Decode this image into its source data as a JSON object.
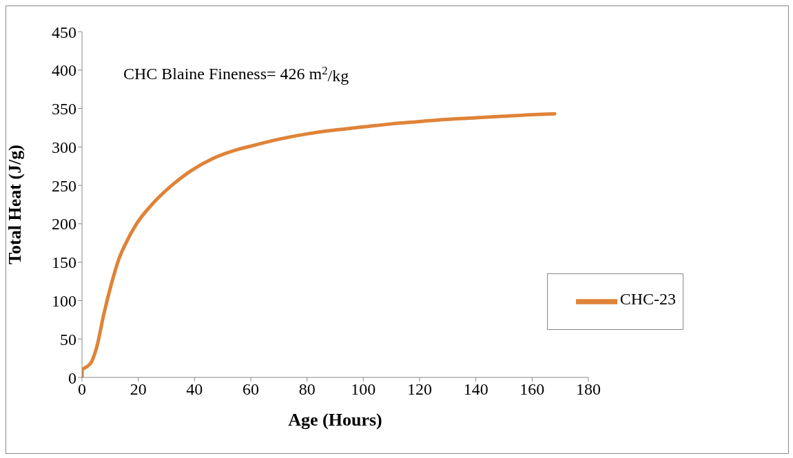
{
  "chart_data": {
    "type": "line",
    "xlabel": "Age (Hours)",
    "ylabel": "Total Heat (J/g)",
    "annotations": [
      "CHC Blaine Fineness= 426 m$^{2}$/kg"
    ],
    "x": [
      0,
      0.1,
      1.3,
      3.2,
      5.2,
      7.8,
      10.4,
      13,
      15.5,
      19.4,
      24.6,
      31,
      38.8,
      46.6,
      55.7,
      60,
      70,
      80,
      90,
      100,
      110,
      120,
      130,
      140,
      150,
      160,
      168
    ],
    "series": [
      {
        "name": "CHC-23",
        "color": "#df8338",
        "values": [
          0,
          10,
          13,
          19,
          39,
          83,
          121,
          153,
          174,
          200,
          224,
          247,
          269,
          285,
          297,
          301,
          310,
          317,
          322,
          326,
          330,
          333,
          336,
          338,
          340,
          342,
          343
        ]
      }
    ],
    "xlim": [
      0,
      180
    ],
    "xticks": [
      0,
      20,
      40,
      60,
      80,
      100,
      120,
      140,
      160,
      180
    ],
    "ylim": [
      0,
      450
    ],
    "yticks": [
      0,
      50,
      100,
      150,
      200,
      250,
      300,
      350,
      400,
      450
    ],
    "grid": false,
    "legend": "right",
    "marker": "none",
    "line_style": "solid"
  }
}
